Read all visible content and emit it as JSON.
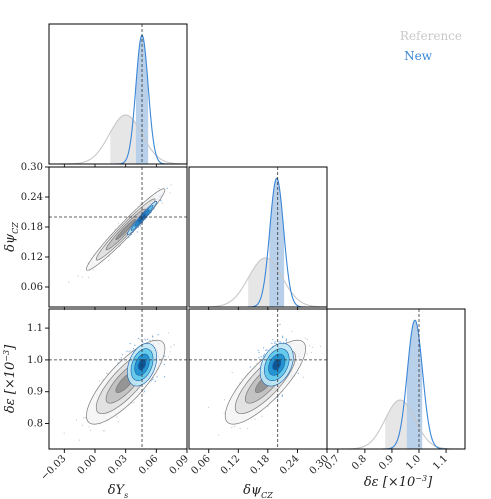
{
  "chart_data": {
    "type": "scatter",
    "subtype": "corner-plot",
    "legend": [
      {
        "name": "Reference",
        "color": "#c9c9c9"
      },
      {
        "name": "New",
        "color": "#3a86d6"
      }
    ],
    "legend_position": "top-right",
    "parameters": [
      {
        "key": "Ys",
        "label_parts": [
          "δ",
          "Y",
          "s"
        ],
        "range": [
          -0.045,
          0.09
        ],
        "ticks": [
          -0.03,
          0.0,
          0.03,
          0.06,
          0.09
        ],
        "tick_labels": [
          "−0.03",
          "0.00",
          "0.03",
          "0.06",
          "0.09"
        ],
        "true_value": 0.046,
        "reference": {
          "mean": 0.03,
          "sd": 0.016,
          "band": [
            0.015,
            0.045
          ]
        },
        "new": {
          "mean": 0.046,
          "sd": 0.006,
          "band": [
            0.04,
            0.052
          ]
        }
      },
      {
        "key": "psiCZ",
        "label_parts": [
          "δ",
          "ψ",
          "CZ"
        ],
        "range": [
          0.02,
          0.3
        ],
        "ticks": [
          0.06,
          0.12,
          0.18,
          0.24,
          0.3
        ],
        "tick_labels": [
          "0.06",
          "0.12",
          "0.18",
          "0.24",
          "0.30"
        ],
        "true_value": 0.2,
        "reference": {
          "mean": 0.175,
          "sd": 0.034,
          "band": [
            0.14,
            0.208
          ]
        },
        "new": {
          "mean": 0.198,
          "sd": 0.014,
          "band": [
            0.183,
            0.213
          ]
        }
      },
      {
        "key": "eps",
        "label_parts": [
          "δ",
          "ε",
          " [×10",
          "−3",
          "]"
        ],
        "range": [
          0.72,
          1.16
        ],
        "ticks": [
          0.8,
          0.9,
          1.0,
          1.1
        ],
        "tick_labels": [
          "0.8",
          "0.9",
          "1.0",
          "1.1"
        ],
        "x_ticks": [
          0.7,
          0.8,
          0.9,
          1.0,
          1.1
        ],
        "x_tick_labels": [
          "0.7",
          "0.8",
          "0.9",
          "1.0",
          "1.1"
        ],
        "x_range": [
          0.66,
          1.17
        ],
        "true_value": 1.0,
        "reference": {
          "mean": 0.93,
          "sd": 0.055,
          "band": [
            0.875,
            0.985
          ]
        },
        "new": {
          "mean": 0.985,
          "sd": 0.028,
          "band": [
            0.955,
            1.012
          ]
        }
      }
    ],
    "y_axis_labeled_params": [
      1,
      2
    ],
    "correlations": {
      "Ys_psiCZ": 0.97,
      "Ys_eps": 0.8,
      "psiCZ_eps": 0.8
    },
    "grid": false
  }
}
